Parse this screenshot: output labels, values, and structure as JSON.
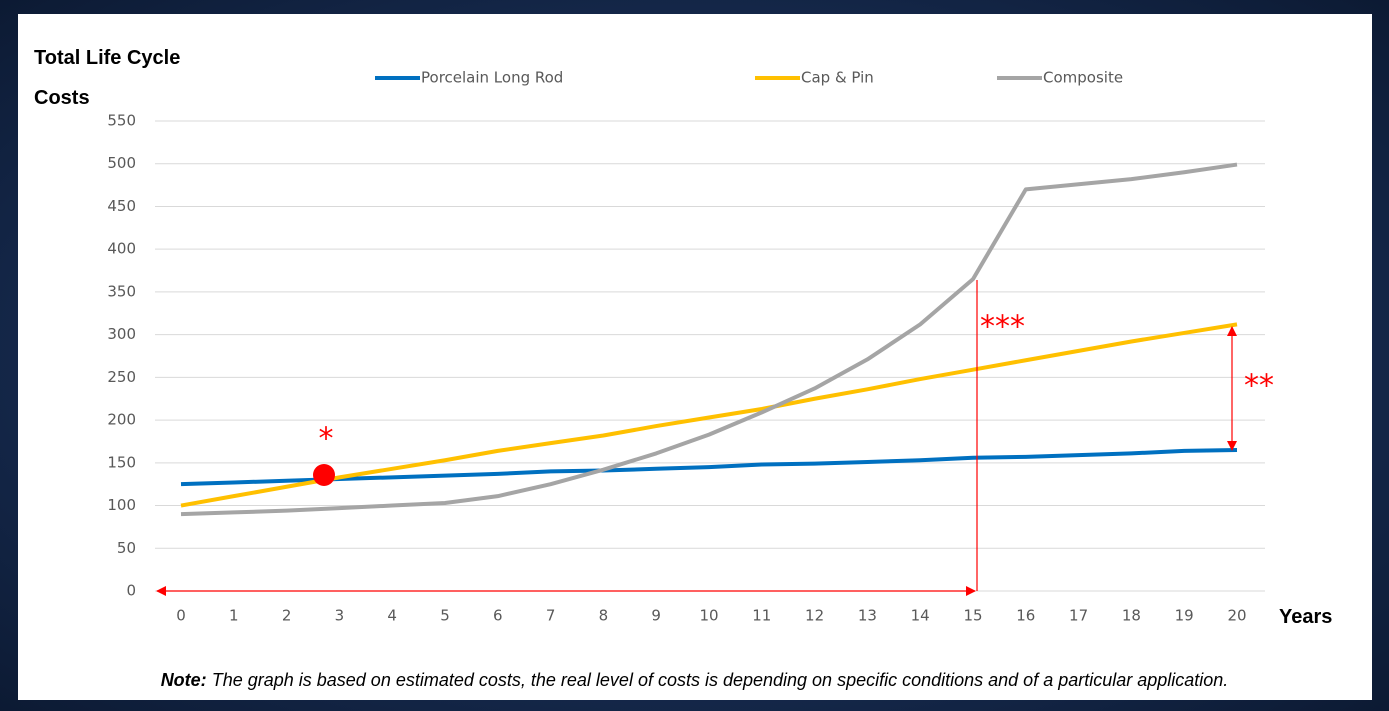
{
  "chart_data": {
    "type": "line",
    "title": "Total Life Cycle Costs",
    "x_label": "Years",
    "x": [
      0,
      1,
      2,
      3,
      4,
      5,
      6,
      7,
      8,
      9,
      10,
      11,
      12,
      13,
      14,
      15,
      16,
      17,
      18,
      19,
      20
    ],
    "xlim": [
      0,
      20
    ],
    "ylim": [
      0,
      550
    ],
    "yticks": [
      0,
      50,
      100,
      150,
      200,
      250,
      300,
      350,
      400,
      450,
      500,
      550
    ],
    "grid": true,
    "series": [
      {
        "name": "Porcelain Long Rod",
        "color": "#0070c0",
        "values": [
          125,
          127,
          129,
          131,
          133,
          135,
          137,
          140,
          141,
          143,
          145,
          148,
          149,
          151,
          153,
          156,
          157,
          159,
          161,
          164,
          165
        ]
      },
      {
        "name": "Cap & Pin",
        "color": "#ffc000",
        "values": [
          100,
          111,
          122,
          133,
          143,
          153,
          164,
          173,
          182,
          193,
          203,
          213,
          225,
          236,
          248,
          259,
          270,
          281,
          292,
          302,
          312
        ]
      },
      {
        "name": "Composite",
        "color": "#a5a5a5",
        "values": [
          90,
          92,
          94,
          97,
          100,
          103,
          111,
          125,
          142,
          161,
          183,
          209,
          237,
          271,
          312,
          365,
          470,
          476,
          482,
          490,
          499
        ]
      }
    ],
    "legend": "top",
    "annotations": [
      "*",
      "**",
      "***"
    ],
    "note": {
      "label": "Note:",
      "text": "The graph is based on estimated costs, the real level of costs is depending on specific conditions and of a particular application."
    }
  }
}
